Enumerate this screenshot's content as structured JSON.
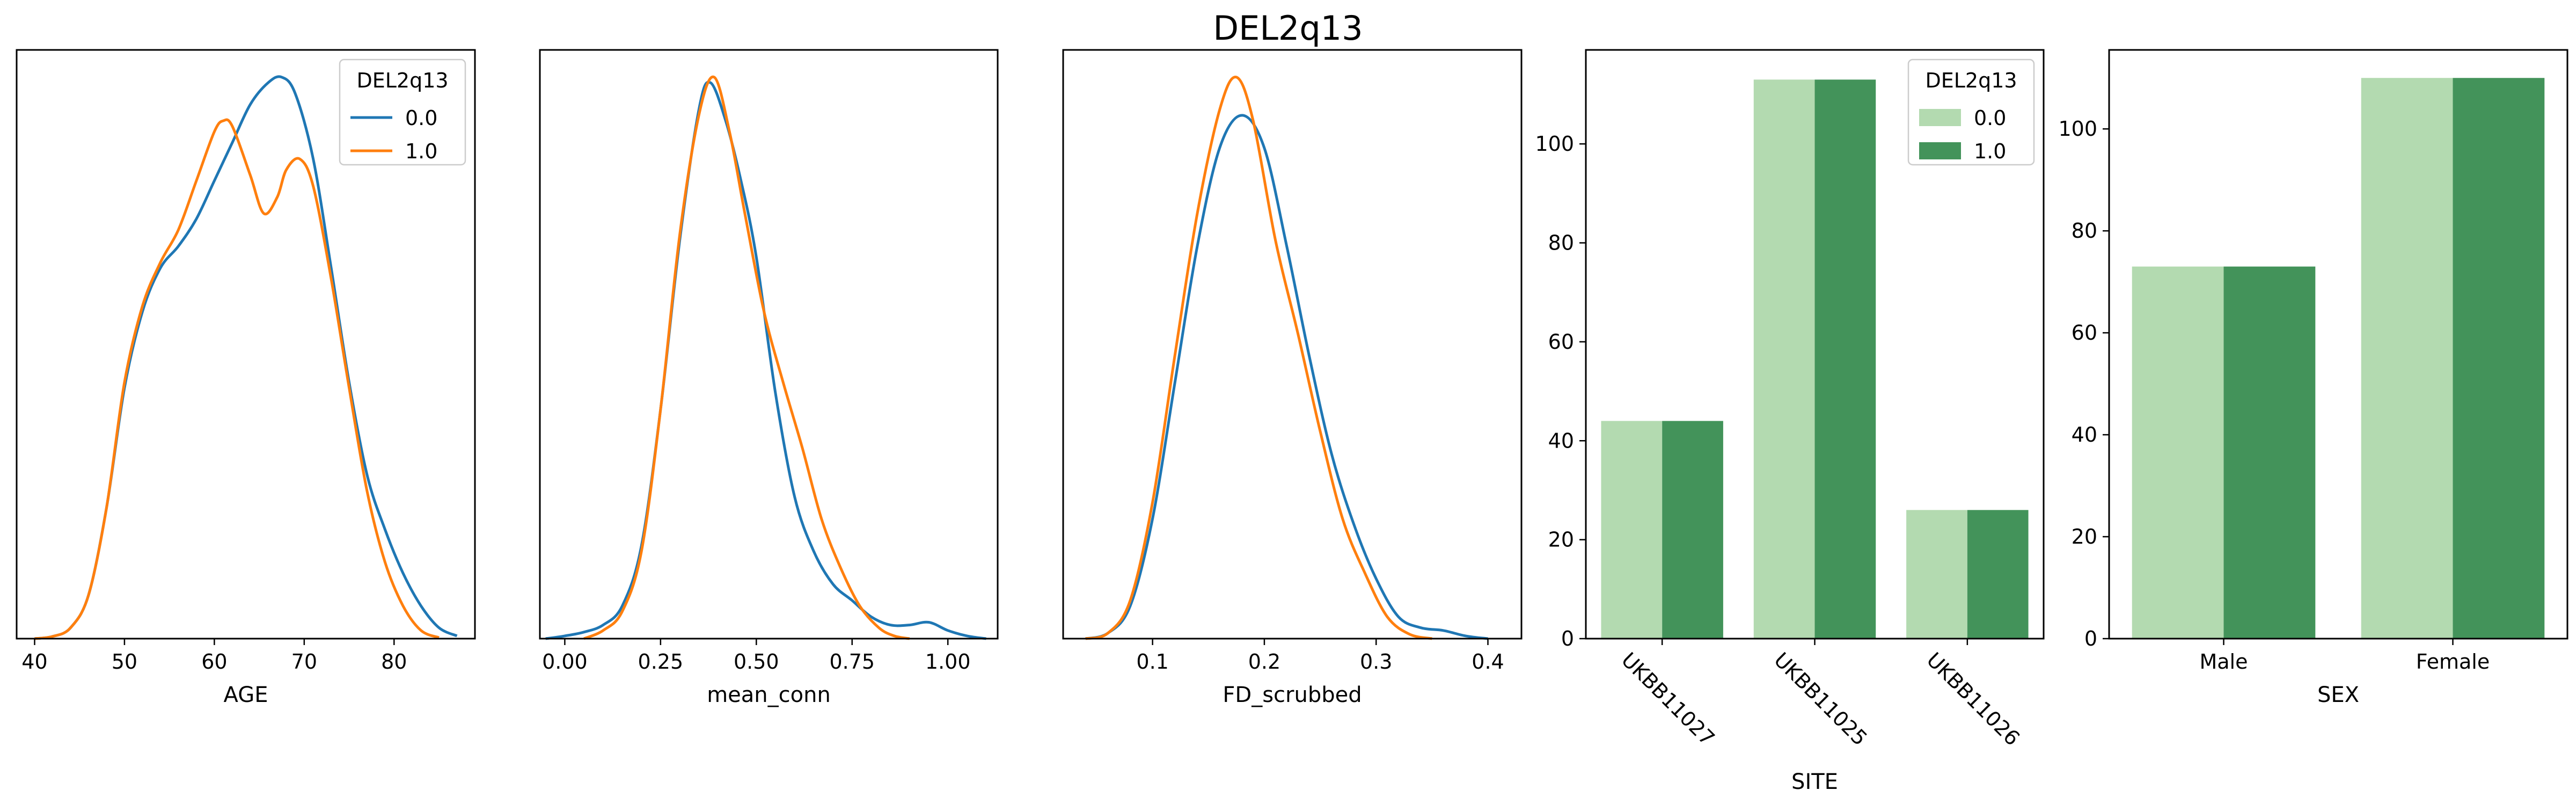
{
  "title": "DEL2q13",
  "colors": {
    "kde_0": "#1f77b4",
    "kde_1": "#ff7f0e",
    "bar_0": "#b3dab0",
    "bar_1": "#43935a"
  },
  "chart_data": [
    {
      "type": "line",
      "xlabel": "AGE",
      "ylabel": "",
      "xlim": [
        38,
        89
      ],
      "ylim": [
        0,
        1.08
      ],
      "xticks": [
        40,
        50,
        60,
        70,
        80
      ],
      "yticks": [],
      "legend": {
        "title": "DEL2q13",
        "placement": "top-right"
      },
      "series": [
        {
          "name": "0.0",
          "color": "#1f77b4",
          "x": [
            40,
            42,
            44,
            46,
            48,
            50,
            52,
            54,
            56,
            58,
            60,
            62,
            64,
            66,
            67.5,
            69,
            71,
            73,
            75,
            77,
            79,
            81,
            83,
            85,
            87
          ],
          "y": [
            0,
            0.004,
            0.02,
            0.08,
            0.24,
            0.46,
            0.6,
            0.68,
            0.72,
            0.77,
            0.84,
            0.91,
            0.98,
            1.02,
            1.03,
            1.0,
            0.88,
            0.68,
            0.47,
            0.3,
            0.2,
            0.12,
            0.06,
            0.02,
            0.005
          ]
        },
        {
          "name": "1.0",
          "color": "#ff7f0e",
          "x": [
            40,
            42,
            44,
            46,
            48,
            50,
            52,
            54,
            56,
            58,
            60,
            61,
            62,
            64,
            65.5,
            67,
            68,
            69.5,
            71,
            73,
            75,
            77,
            79,
            81,
            83,
            85
          ],
          "y": [
            0,
            0.004,
            0.02,
            0.08,
            0.24,
            0.47,
            0.61,
            0.69,
            0.75,
            0.84,
            0.93,
            0.95,
            0.94,
            0.85,
            0.78,
            0.81,
            0.86,
            0.88,
            0.83,
            0.66,
            0.46,
            0.27,
            0.14,
            0.06,
            0.015,
            0.002
          ]
        }
      ]
    },
    {
      "type": "line",
      "xlabel": "mean_conn",
      "ylabel": "",
      "xlim": [
        -0.065,
        1.13
      ],
      "ylim": [
        0,
        1.08
      ],
      "xticks": [
        0.0,
        0.25,
        0.5,
        0.75,
        1.0
      ],
      "yticks": [],
      "series": [
        {
          "name": "0.0",
          "color": "#1f77b4",
          "x": [
            -0.05,
            0.0,
            0.05,
            0.1,
            0.15,
            0.2,
            0.25,
            0.3,
            0.35,
            0.38,
            0.42,
            0.46,
            0.5,
            0.55,
            0.6,
            0.65,
            0.7,
            0.75,
            0.8,
            0.85,
            0.9,
            0.95,
            1.0,
            1.05,
            1.1
          ],
          "y": [
            0,
            0.005,
            0.012,
            0.025,
            0.06,
            0.17,
            0.42,
            0.73,
            0.97,
            1.02,
            0.95,
            0.84,
            0.7,
            0.45,
            0.26,
            0.16,
            0.1,
            0.07,
            0.04,
            0.025,
            0.025,
            0.03,
            0.015,
            0.005,
            0
          ],
          "y_dummy": null
        },
        {
          "name": "1.0",
          "color": "#ff7f0e",
          "x": [
            0.05,
            0.1,
            0.15,
            0.2,
            0.25,
            0.3,
            0.35,
            0.39,
            0.43,
            0.47,
            0.52,
            0.57,
            0.62,
            0.67,
            0.72,
            0.77,
            0.82,
            0.86,
            0.9
          ],
          "y": [
            0,
            0.015,
            0.05,
            0.16,
            0.42,
            0.74,
            0.96,
            1.03,
            0.93,
            0.78,
            0.6,
            0.47,
            0.35,
            0.22,
            0.13,
            0.06,
            0.02,
            0.005,
            0
          ]
        }
      ]
    },
    {
      "type": "line",
      "xlabel": "FD_scrubbed",
      "ylabel": "",
      "xlim": [
        0.02,
        0.43
      ],
      "ylim": [
        0,
        1.08
      ],
      "xticks": [
        0.1,
        0.2,
        0.3,
        0.4
      ],
      "yticks": [],
      "series": [
        {
          "name": "0.0",
          "color": "#1f77b4",
          "x": [
            0.04,
            0.06,
            0.08,
            0.1,
            0.12,
            0.14,
            0.16,
            0.18,
            0.2,
            0.22,
            0.24,
            0.26,
            0.28,
            0.3,
            0.32,
            0.34,
            0.36,
            0.38,
            0.4
          ],
          "y": [
            0,
            0.01,
            0.06,
            0.22,
            0.47,
            0.72,
            0.9,
            0.96,
            0.9,
            0.72,
            0.52,
            0.34,
            0.21,
            0.11,
            0.04,
            0.02,
            0.015,
            0.005,
            0
          ]
        },
        {
          "name": "1.0",
          "color": "#ff7f0e",
          "x": [
            0.04,
            0.06,
            0.08,
            0.1,
            0.12,
            0.14,
            0.16,
            0.175,
            0.19,
            0.21,
            0.23,
            0.25,
            0.27,
            0.29,
            0.31,
            0.33,
            0.35
          ],
          "y": [
            0,
            0.01,
            0.07,
            0.25,
            0.52,
            0.78,
            0.97,
            1.03,
            0.95,
            0.73,
            0.56,
            0.38,
            0.22,
            0.12,
            0.04,
            0.008,
            0
          ]
        }
      ]
    },
    {
      "type": "bar",
      "xlabel": "SITE",
      "ylabel": "",
      "categories": [
        "UKBB11027",
        "UKBB11025",
        "UKBB11026"
      ],
      "ylim": [
        0,
        119
      ],
      "yticks": [
        0,
        20,
        40,
        60,
        80,
        100
      ],
      "legend": {
        "title": "DEL2q13",
        "placement": "top-right"
      },
      "series": [
        {
          "name": "0.0",
          "color": "#b3dab0",
          "values": [
            44,
            113,
            26
          ]
        },
        {
          "name": "1.0",
          "color": "#43935a",
          "values": [
            44,
            113,
            26
          ]
        }
      ]
    },
    {
      "type": "bar",
      "xlabel": "SEX",
      "ylabel": "",
      "categories": [
        "Male",
        "Female"
      ],
      "ylim": [
        0,
        115.5
      ],
      "yticks": [
        0,
        20,
        40,
        60,
        80,
        100
      ],
      "series": [
        {
          "name": "0.0",
          "color": "#b3dab0",
          "values": [
            73,
            110
          ]
        },
        {
          "name": "1.0",
          "color": "#43935a",
          "values": [
            73,
            110
          ]
        }
      ]
    }
  ]
}
